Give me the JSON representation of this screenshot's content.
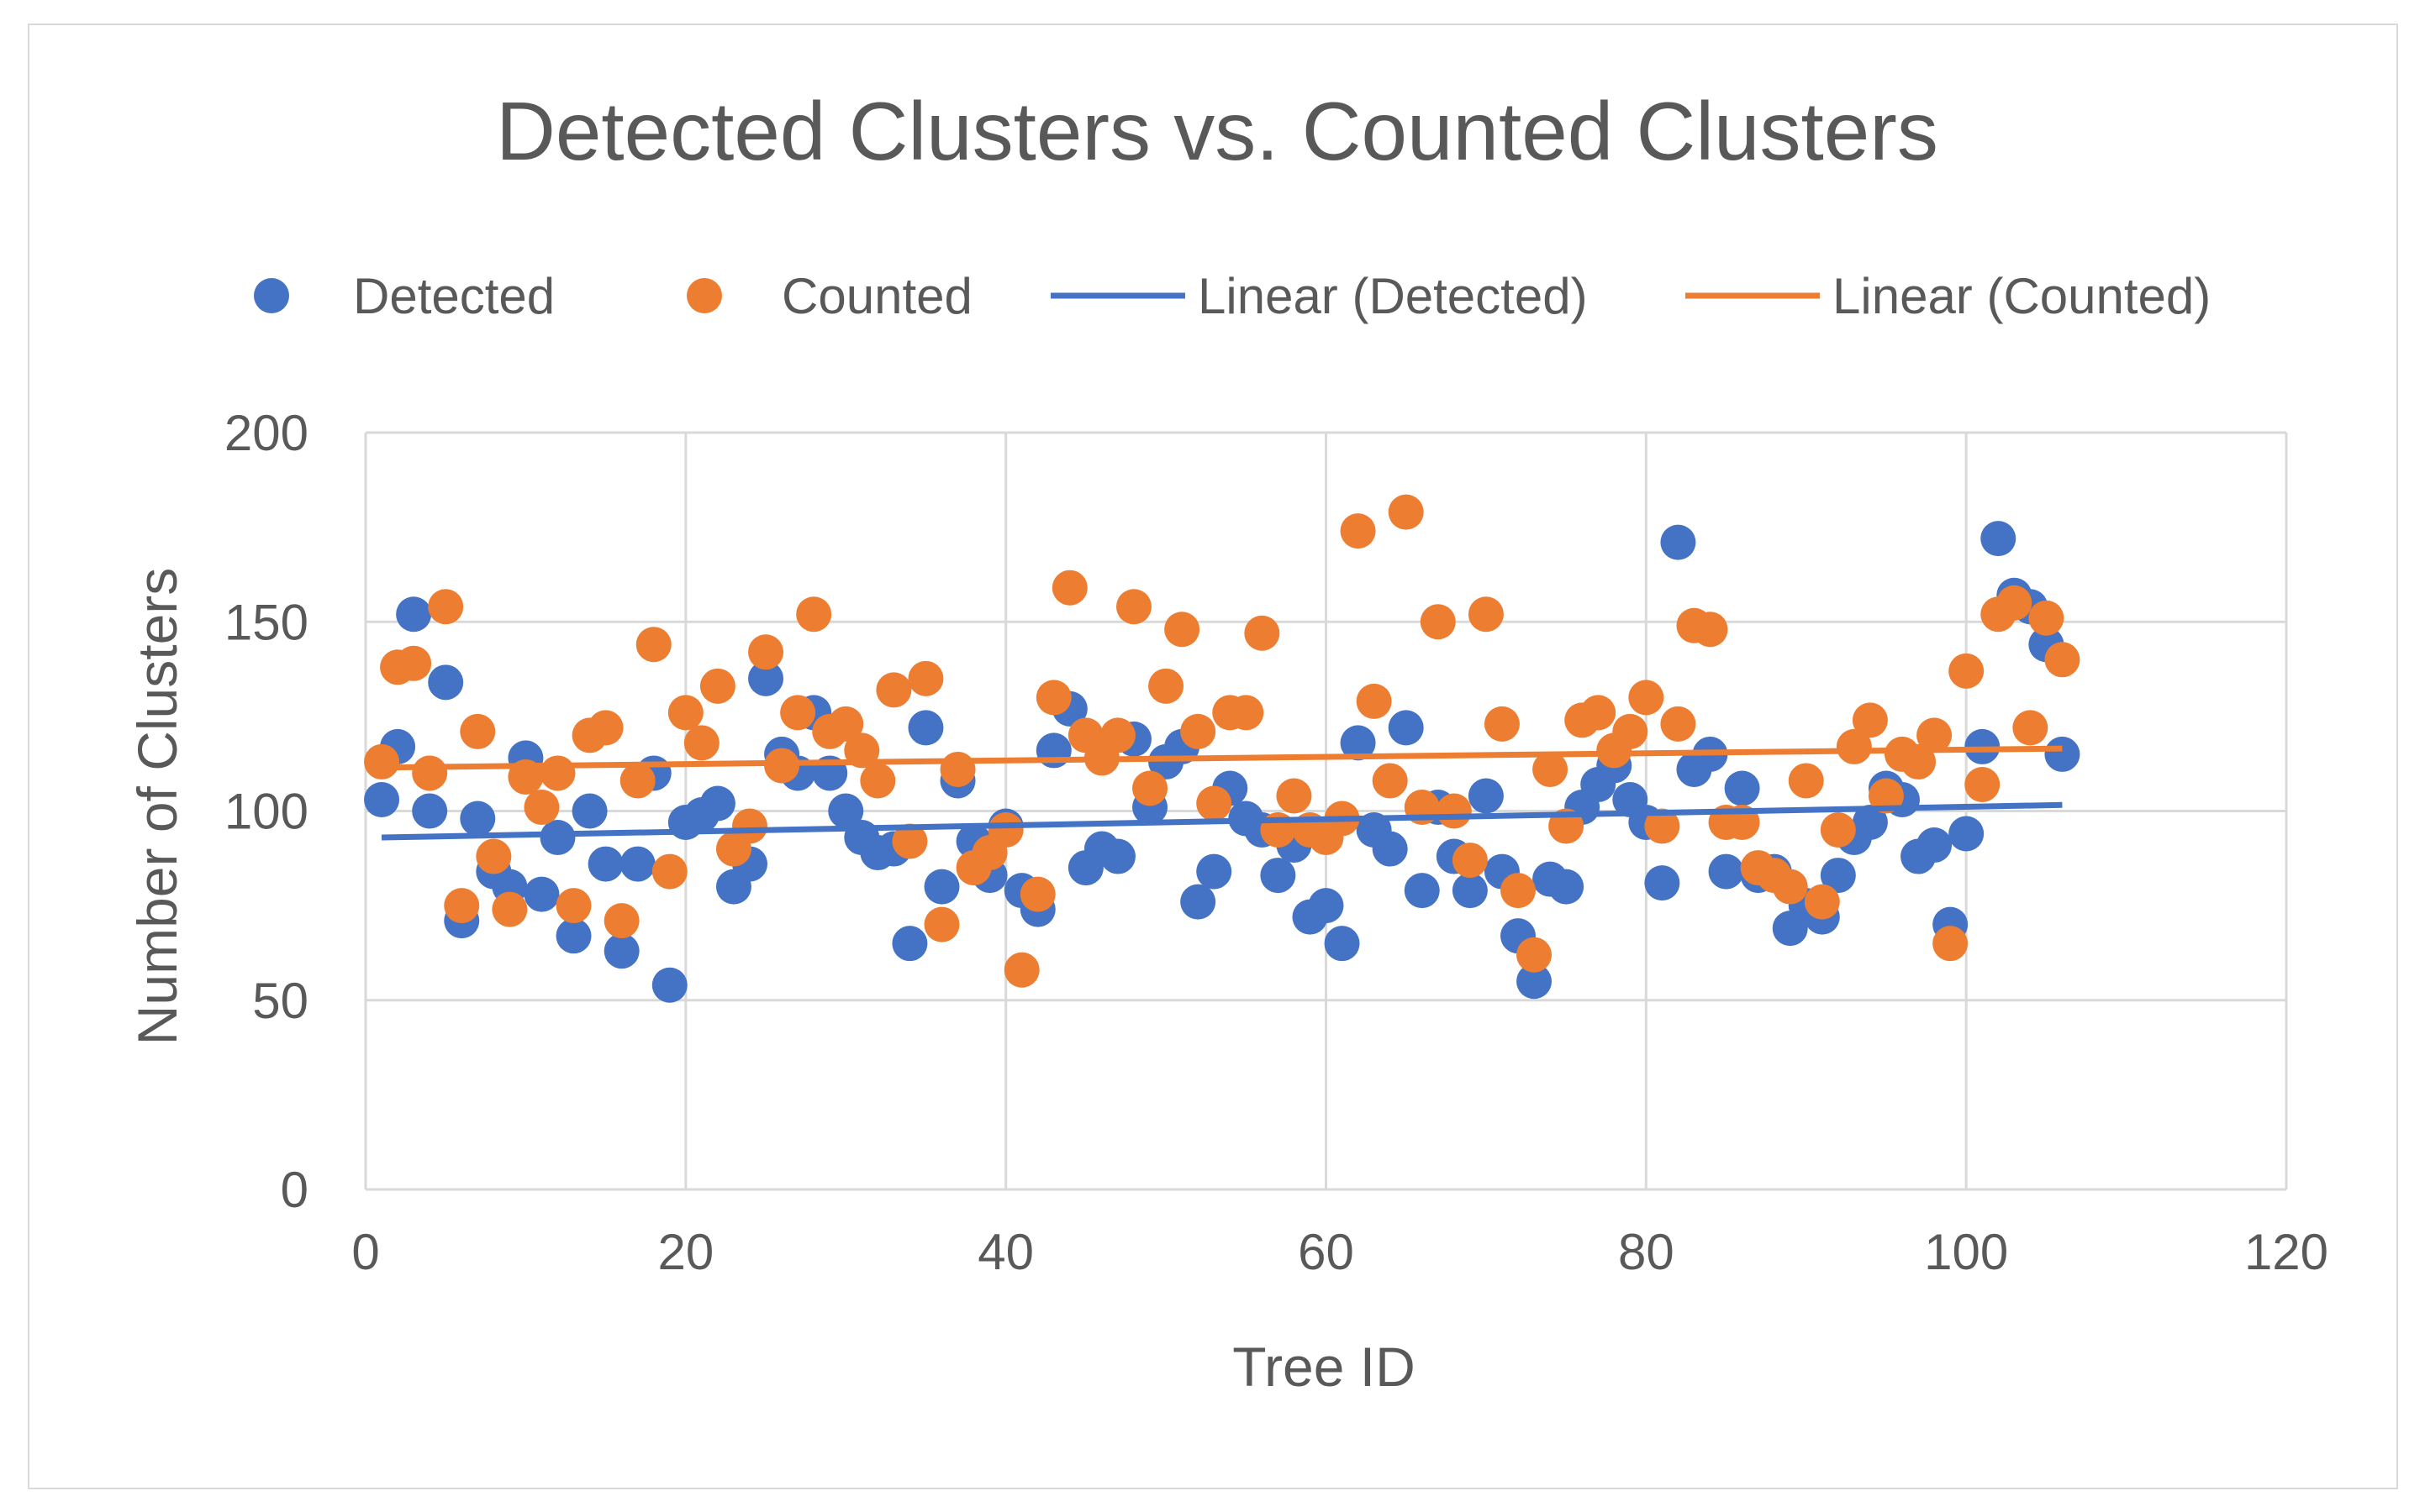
{
  "chart_data": {
    "type": "scatter",
    "title": "Detected Clusters vs. Counted Clusters",
    "xlabel": "Tree ID",
    "ylabel": "Number of Clusters",
    "xlim": [
      0,
      120
    ],
    "ylim": [
      0,
      200
    ],
    "xticks": [
      0,
      20,
      40,
      60,
      80,
      100,
      120
    ],
    "yticks": [
      0,
      50,
      100,
      150,
      200
    ],
    "grid": true,
    "legend_position": "top",
    "colors": {
      "detected": "#4472c4",
      "counted": "#ed7d31",
      "grid": "#d9d9d9"
    },
    "legend": [
      {
        "label": "Detected",
        "kind": "marker",
        "series": "detected"
      },
      {
        "label": "Counted",
        "kind": "marker",
        "series": "counted"
      },
      {
        "label": "Linear (Detected)",
        "kind": "line",
        "series": "detected"
      },
      {
        "label": "Linear (Counted)",
        "kind": "line",
        "series": "counted"
      }
    ],
    "series": [
      {
        "name": "Detected",
        "key": "detected",
        "x": [
          1,
          2,
          3,
          4,
          5,
          6,
          7,
          8,
          9,
          10,
          11,
          12,
          13,
          14,
          15,
          16,
          17,
          18,
          19,
          20,
          21,
          22,
          23,
          24,
          25,
          26,
          27,
          28,
          29,
          30,
          31,
          32,
          33,
          34,
          35,
          36,
          37,
          38,
          39,
          40,
          41,
          42,
          43,
          44,
          45,
          46,
          47,
          48,
          49,
          50,
          51,
          52,
          53,
          54,
          55,
          56,
          57,
          58,
          59,
          60,
          61,
          62,
          63,
          64,
          65,
          66,
          67,
          68,
          69,
          70,
          71,
          72,
          73,
          74,
          75,
          76,
          77,
          78,
          79,
          80,
          81,
          82,
          83,
          84,
          85,
          86,
          87,
          88,
          89,
          90,
          91,
          92,
          93,
          94,
          95,
          96,
          97,
          98,
          99,
          100,
          101,
          102,
          103,
          104,
          105,
          106
        ],
        "y": [
          103,
          117,
          152,
          100,
          134,
          71,
          98,
          84,
          80,
          114,
          78,
          93,
          67,
          100,
          86,
          63,
          86,
          110,
          54,
          97,
          99,
          102,
          80,
          86,
          135,
          115,
          110,
          126,
          110,
          100,
          93,
          89,
          90,
          65,
          122,
          80,
          108,
          92,
          83,
          96,
          79,
          74,
          116,
          127,
          85,
          90,
          88,
          119,
          101,
          113,
          117,
          76,
          84,
          106,
          98,
          95,
          83,
          91,
          72,
          75,
          65,
          118,
          95,
          90,
          122,
          79,
          101,
          88,
          79,
          104,
          84,
          67,
          55,
          82,
          80,
          101,
          107,
          112,
          103,
          97,
          81,
          171,
          111,
          115,
          84,
          106,
          83,
          84,
          69,
          75,
          72,
          83,
          93,
          97,
          106,
          103,
          88,
          91,
          70,
          94,
          117,
          172,
          157,
          154,
          144,
          115
        ]
      },
      {
        "name": "Counted",
        "key": "counted",
        "x": [
          1,
          2,
          3,
          4,
          5,
          6,
          7,
          8,
          9,
          10,
          11,
          12,
          13,
          14,
          15,
          16,
          17,
          18,
          19,
          20,
          21,
          22,
          23,
          24,
          25,
          26,
          27,
          28,
          29,
          30,
          31,
          32,
          33,
          34,
          35,
          36,
          37,
          38,
          39,
          40,
          41,
          42,
          43,
          44,
          45,
          46,
          47,
          48,
          49,
          50,
          51,
          52,
          53,
          54,
          55,
          56,
          57,
          58,
          59,
          60,
          61,
          62,
          63,
          64,
          65,
          66,
          67,
          68,
          69,
          70,
          71,
          72,
          73,
          74,
          75,
          76,
          77,
          78,
          79,
          80,
          81,
          82,
          83,
          84,
          85,
          86,
          87,
          88,
          89,
          90,
          91,
          92,
          93,
          94,
          95,
          96,
          97,
          98,
          99,
          100,
          101,
          102,
          103,
          104,
          105,
          106
        ],
        "y": [
          113,
          138,
          139,
          110,
          154,
          75,
          121,
          88,
          74,
          109,
          101,
          110,
          75,
          120,
          122,
          71,
          108,
          144,
          84,
          126,
          118,
          133,
          90,
          96,
          142,
          112,
          126,
          152,
          121,
          123,
          116,
          108,
          132,
          92,
          135,
          70,
          111,
          85,
          89,
          95,
          58,
          78,
          130,
          159,
          120,
          114,
          120,
          154,
          106,
          133,
          148,
          121,
          102,
          126,
          126,
          147,
          95,
          104,
          95,
          93,
          98,
          174,
          129,
          108,
          179,
          101,
          150,
          100,
          87,
          152,
          123,
          79,
          62,
          111,
          96,
          124,
          126,
          116,
          121,
          130,
          96,
          123,
          149,
          148,
          97,
          97,
          85,
          83,
          80,
          108,
          76,
          95,
          117,
          124,
          104,
          115,
          113,
          120,
          65,
          137,
          107,
          152,
          155,
          122,
          151,
          140
        ]
      }
    ],
    "trendlines": [
      {
        "name": "Linear (Detected)",
        "key": "detected",
        "x": [
          1,
          106
        ],
        "y": [
          93,
          101.6
        ]
      },
      {
        "name": "Linear (Counted)",
        "key": "counted",
        "x": [
          1,
          106
        ],
        "y": [
          111.5,
          116.5
        ]
      }
    ]
  }
}
